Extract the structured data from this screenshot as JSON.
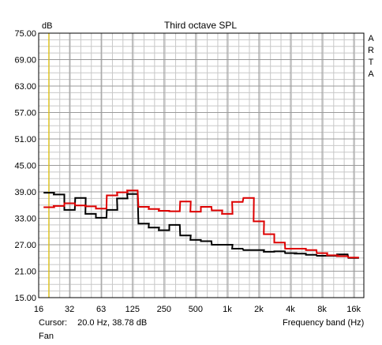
{
  "chart_data": {
    "type": "line",
    "title": "Third octave SPL",
    "ylabel": "dB",
    "xlabel": "Frequency band (Hz)",
    "y_tick_labels": [
      "75.00",
      "69.00",
      "63.00",
      "57.00",
      "51.00",
      "45.00",
      "39.00",
      "33.00",
      "27.00",
      "21.00",
      "15.00"
    ],
    "x_tick_labels": [
      "16",
      "32",
      "63",
      "125",
      "250",
      "500",
      "1k",
      "2k",
      "4k",
      "8k",
      "16k"
    ],
    "ylim": [
      15,
      75
    ],
    "xlim_hz": [
      16,
      20000
    ],
    "x_scale": "log",
    "grid": true,
    "side_label": [
      "A",
      "R",
      "T",
      "A"
    ],
    "cursor": {
      "label": "Cursor:",
      "value": "20.0 Hz, 38.78 dB",
      "hz": 20
    },
    "footer": "Fan",
    "colors": {
      "series_black": "#000000",
      "series_red": "#dd0000",
      "cursor": "#e0c000",
      "grid": "#c8c8c8"
    },
    "series": [
      {
        "color": "#000000",
        "bands": [
          20,
          25,
          31.5,
          40,
          50,
          63,
          80,
          100,
          125,
          160,
          200,
          250,
          315,
          400,
          500,
          630,
          800,
          1000,
          1250,
          1600,
          2000,
          2500,
          3150,
          4000,
          5000,
          6300,
          8000,
          10000,
          12500,
          16000
        ],
        "values": [
          38.8,
          38.4,
          34.9,
          37.6,
          34.0,
          33.1,
          34.9,
          37.5,
          38.5,
          31.8,
          30.9,
          30.3,
          31.5,
          29.1,
          28.1,
          27.8,
          27.0,
          27.0,
          26.1,
          25.8,
          25.8,
          25.4,
          25.5,
          25.1,
          25.0,
          24.7,
          24.5,
          24.5,
          24.8,
          24.0
        ]
      },
      {
        "color": "#dd0000",
        "bands": [
          20,
          25,
          31.5,
          40,
          50,
          63,
          80,
          100,
          125,
          160,
          200,
          250,
          315,
          400,
          500,
          630,
          800,
          1000,
          1250,
          1600,
          2000,
          2500,
          3150,
          4000,
          5000,
          6300,
          8000,
          10000,
          12500,
          16000
        ],
        "values": [
          35.5,
          35.8,
          36.4,
          35.9,
          35.7,
          35.2,
          38.2,
          38.9,
          39.3,
          35.6,
          35.1,
          34.7,
          34.6,
          36.8,
          34.5,
          35.6,
          34.8,
          34.0,
          36.7,
          37.6,
          32.3,
          29.4,
          27.5,
          26.1,
          26.1,
          25.8,
          25.1,
          24.6,
          24.4,
          24.1
        ]
      }
    ]
  }
}
